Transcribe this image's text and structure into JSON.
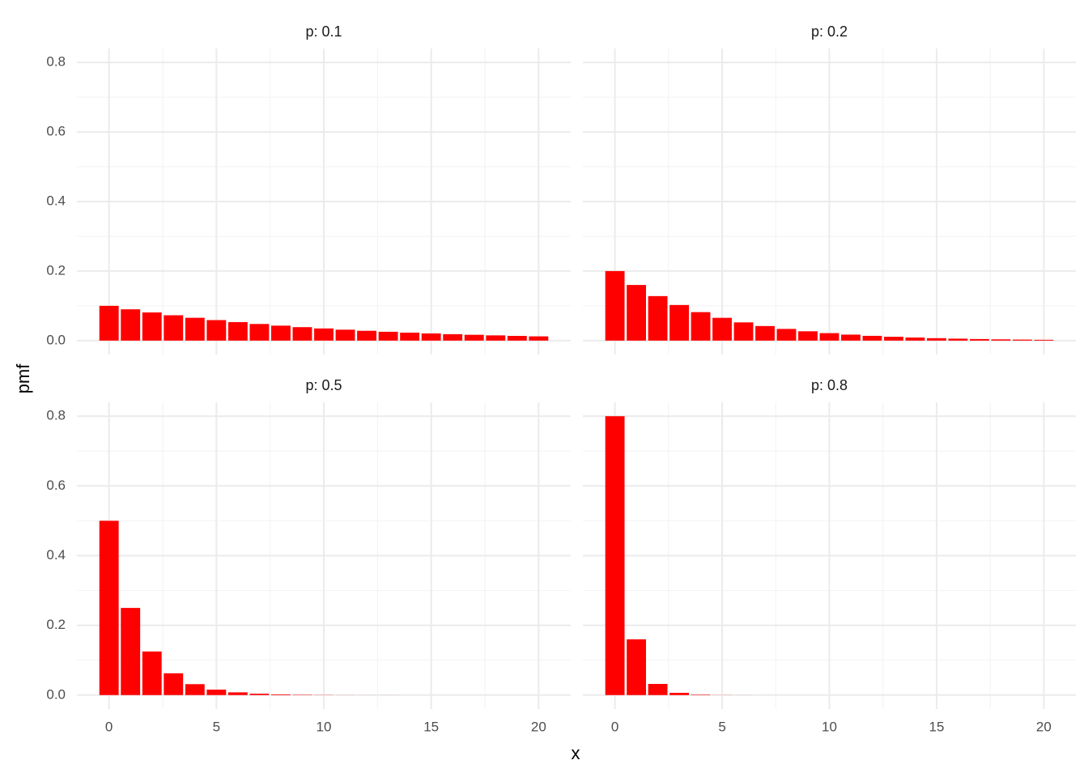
{
  "x_label": "x",
  "y_label": "pmf",
  "chart_data": [
    {
      "type": "bar",
      "title": "p: 0.1",
      "color": "#ff0000",
      "x": [
        0,
        1,
        2,
        3,
        4,
        5,
        6,
        7,
        8,
        9,
        10,
        11,
        12,
        13,
        14,
        15,
        16,
        17,
        18,
        19,
        20
      ],
      "values": [
        0.1,
        0.09,
        0.081,
        0.0729,
        0.0656,
        0.059,
        0.0531,
        0.0478,
        0.043,
        0.0387,
        0.0349,
        0.0314,
        0.0282,
        0.0254,
        0.0229,
        0.0206,
        0.0185,
        0.0167,
        0.015,
        0.0135,
        0.0122
      ],
      "xlim": [
        -1.495,
        21.495
      ],
      "ylim": [
        -0.04,
        0.84
      ],
      "xticks": [
        0,
        5,
        10,
        15,
        20
      ],
      "yticks": [
        {
          "value": 0,
          "label": "0.0"
        },
        0.2,
        0.4,
        0.6,
        0.8
      ],
      "grid": true
    },
    {
      "type": "bar",
      "title": "p: 0.2",
      "color": "#ff0000",
      "x": [
        0,
        1,
        2,
        3,
        4,
        5,
        6,
        7,
        8,
        9,
        10,
        11,
        12,
        13,
        14,
        15,
        16,
        17,
        18,
        19,
        20
      ],
      "values": [
        0.2,
        0.16,
        0.128,
        0.1024,
        0.0819,
        0.0655,
        0.0524,
        0.0419,
        0.0336,
        0.0268,
        0.0215,
        0.0172,
        0.0137,
        0.011,
        0.0088,
        0.007,
        0.0056,
        0.0045,
        0.0036,
        0.0029,
        0.0023
      ],
      "xlim": [
        -1.495,
        21.495
      ],
      "ylim": [
        -0.04,
        0.84
      ],
      "xticks": [
        0,
        5,
        10,
        15,
        20
      ],
      "yticks": [
        {
          "value": 0,
          "label": "0.0"
        },
        0.2,
        0.4,
        0.6,
        0.8
      ],
      "grid": true
    },
    {
      "type": "bar",
      "title": "p: 0.5",
      "color": "#ff0000",
      "x": [
        0,
        1,
        2,
        3,
        4,
        5,
        6,
        7,
        8,
        9,
        10,
        11,
        12,
        13,
        14,
        15,
        16,
        17,
        18,
        19,
        20
      ],
      "values": [
        0.5,
        0.25,
        0.125,
        0.0625,
        0.0313,
        0.0156,
        0.0078,
        0.0039,
        0.002,
        0.001,
        0.0005,
        0.0002,
        0.0001,
        0.0001,
        0,
        0,
        0,
        0,
        0,
        0,
        0
      ],
      "xlim": [
        -1.495,
        21.495
      ],
      "ylim": [
        -0.04,
        0.84
      ],
      "xticks": [
        0,
        5,
        10,
        15,
        20
      ],
      "yticks": [
        {
          "value": 0,
          "label": "0.0"
        },
        0.2,
        0.4,
        0.6,
        0.8
      ],
      "grid": true
    },
    {
      "type": "bar",
      "title": "p: 0.8",
      "color": "#ff0000",
      "x": [
        0,
        1,
        2,
        3,
        4,
        5,
        6,
        7,
        8,
        9,
        10,
        11,
        12,
        13,
        14,
        15,
        16,
        17,
        18,
        19,
        20
      ],
      "values": [
        0.8,
        0.16,
        0.032,
        0.0064,
        0.0013,
        0.0003,
        0.0001,
        0,
        0,
        0,
        0,
        0,
        0,
        0,
        0,
        0,
        0,
        0,
        0,
        0,
        0
      ],
      "xlim": [
        -1.495,
        21.495
      ],
      "ylim": [
        -0.04,
        0.84
      ],
      "xticks": [
        0,
        5,
        10,
        15,
        20
      ],
      "yticks": [
        {
          "value": 0,
          "label": "0.0"
        },
        0.2,
        0.4,
        0.6,
        0.8
      ],
      "grid": true
    }
  ]
}
